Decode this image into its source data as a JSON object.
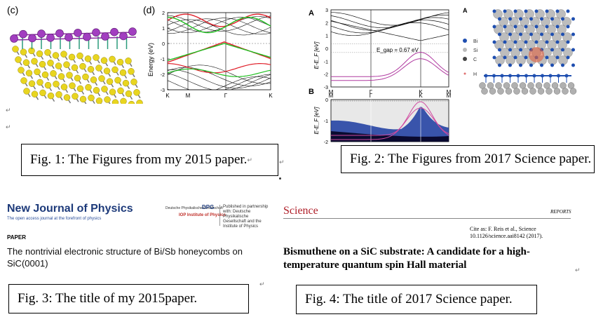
{
  "fig1": {
    "panel_label": "(c)",
    "caption": "Fig. 1: The Figures from my 2015 paper."
  },
  "fig_d": {
    "panel_label": "(d)",
    "ylabel": "Energy (eV)",
    "yticks": [
      "2",
      "1",
      "0",
      "-1",
      "-2",
      "-3"
    ],
    "xticks": [
      "K",
      "M",
      "Γ",
      "K"
    ],
    "colors": {
      "red": "#e0202a",
      "green": "#1fbf1f"
    }
  },
  "fig2": {
    "panel_a_label": "A",
    "panel_b_label": "B",
    "a_yticks": [
      "3",
      "2",
      "1",
      "0",
      "-1",
      "-2",
      "-3"
    ],
    "a_xticks": [
      "M",
      "Γ",
      "K",
      "M"
    ],
    "ylabel_a": "E-E_F [eV]",
    "gap_label": "E_gap = 0.67 eV",
    "b_yticks": [
      "0",
      "-1",
      "-2"
    ],
    "b_xticks": [
      "M",
      "Γ",
      "K",
      "M"
    ],
    "ylabel_b": "E-E_F [eV]",
    "caption": "Fig. 2: The Figures from 2017 Science paper."
  },
  "structure": {
    "panel_label": "A",
    "legend": [
      {
        "label": "Bi",
        "color": "#1f4fb0"
      },
      {
        "label": "Si",
        "color": "#bbbbbb"
      },
      {
        "label": "C",
        "color": "#444444"
      },
      {
        "label": "H",
        "color": "#e07070"
      }
    ]
  },
  "njp": {
    "journal": "New Journal of Physics",
    "tagline": "The open access journal at the forefront of physics",
    "dpg": "Deutsche Physikalische Gesellschaft",
    "dpg_logo": "DPG",
    "iop": "IOP Institute of Physics",
    "partnership": "Published in partnership with: Deutsche Physikalische Gesellschaft and the Institute of Physics",
    "section": "PAPER",
    "title_line1": "The nontrivial electronic structure of Bi/Sb honeycombs on",
    "title_line2": "SiC(0001)",
    "caption": "Fig. 3: The title of my 2015paper."
  },
  "science": {
    "logo": "Science",
    "section": "REPORTS",
    "cite_line1": "Cite as: F. Reis et al., Science",
    "cite_line2": "10.1126/science.aai8142 (2017).",
    "title_line1": "Bismuthene on a SiC substrate: A candidate for a high-",
    "title_line2": "temperature quantum spin Hall material",
    "caption": "Fig. 4: The title of 2017 Science paper."
  },
  "marks": {
    "return_mark": "↵"
  }
}
